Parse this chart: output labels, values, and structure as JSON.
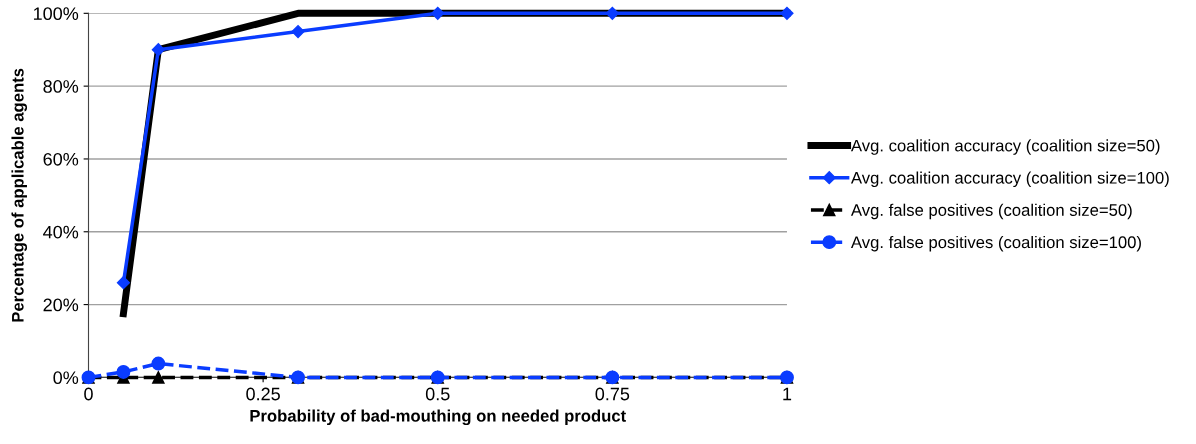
{
  "chart_data": {
    "type": "line",
    "xlabel": "Probability of bad-mouthing on needed product",
    "ylabel": "Percentage of applicable agents",
    "xlim": [
      0,
      1
    ],
    "xticks": [
      0,
      0.25,
      0.5,
      0.75,
      1
    ],
    "ylim": [
      0,
      100
    ],
    "yticks": [
      {
        "value": 0,
        "label": "0%"
      },
      {
        "value": 20,
        "label": "20%"
      },
      {
        "value": 40,
        "label": "40%"
      },
      {
        "value": 60,
        "label": "60%"
      },
      {
        "value": 80,
        "label": "80%"
      },
      {
        "value": 100,
        "label": "100%"
      }
    ],
    "grid": "y",
    "legend": "right",
    "series": [
      {
        "name": "Avg. coalition accuracy (coalition size=50)",
        "color": "#000000",
        "marker": "none",
        "line_style": "solid",
        "x": [
          0.05,
          0.1,
          0.3,
          0.5,
          0.75,
          1
        ],
        "values": [
          17.5,
          90,
          100,
          100,
          100,
          100
        ]
      },
      {
        "name": "Avg. coalition accuracy (coalition size=100)",
        "color": "#0a3cff",
        "marker": "diamond",
        "line_style": "solid",
        "x": [
          0.05,
          0.1,
          0.3,
          0.5,
          0.75,
          1
        ],
        "values": [
          26,
          90,
          95,
          100,
          100,
          100
        ]
      },
      {
        "name": "Avg. false positives (coalition size=50)",
        "color": "#000000",
        "marker": "triangle",
        "line_style": "dashed",
        "x": [
          0,
          0.05,
          0.1,
          0.3,
          0.5,
          0.75,
          1
        ],
        "values": [
          0,
          0,
          0,
          0,
          0,
          0,
          0
        ]
      },
      {
        "name": "Avg. false positives (coalition size=100)",
        "color": "#0a3cff",
        "marker": "circle",
        "line_style": "dashed",
        "x": [
          0,
          0.05,
          0.1,
          0.3,
          0.5,
          0.75,
          1
        ],
        "values": [
          0,
          1.5,
          3.8,
          0,
          0,
          0,
          0
        ]
      }
    ]
  }
}
